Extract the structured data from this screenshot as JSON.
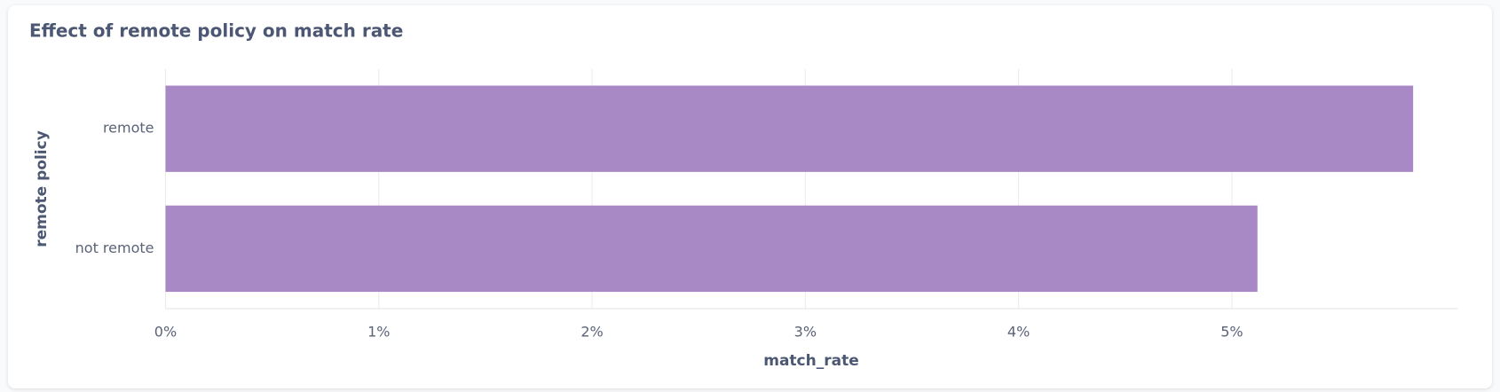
{
  "chart_data": {
    "type": "bar",
    "orientation": "horizontal",
    "title": "Effect of remote policy on match rate",
    "x_label": "match_rate",
    "y_label": "remote policy",
    "categories": [
      "remote",
      "not remote"
    ],
    "values": [
      5.85,
      5.12
    ],
    "color": "#a989c5",
    "xlim": [
      0,
      6.06
    ],
    "xticks": [
      {
        "value": 0,
        "label": "0%"
      },
      {
        "value": 1,
        "label": "1%"
      },
      {
        "value": 2,
        "label": "2%"
      },
      {
        "value": 3,
        "label": "3%"
      },
      {
        "value": 4,
        "label": "4%"
      },
      {
        "value": 5,
        "label": "5%"
      }
    ],
    "grid": true
  }
}
